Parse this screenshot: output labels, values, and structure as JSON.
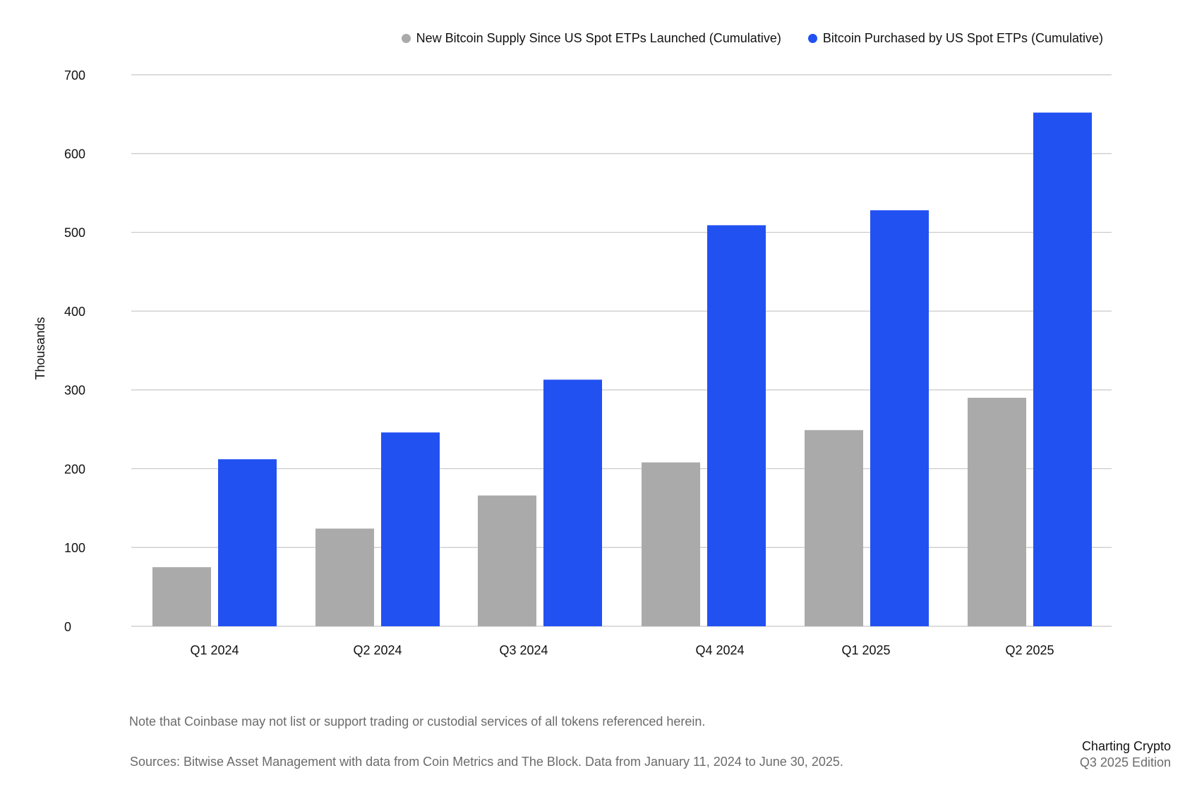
{
  "chart_data": {
    "type": "bar",
    "categories": [
      "Q1 2024",
      "Q2 2024",
      "Q3 2024",
      "Q4 2024",
      "Q1 2025",
      "Q2 2025"
    ],
    "series": [
      {
        "name": "New Bitcoin Supply Since US Spot ETPs Launched (Cumulative)",
        "color": "#aaaaaa",
        "values": [
          75,
          124,
          166,
          208,
          249,
          290
        ]
      },
      {
        "name": "Bitcoin Purchased by US Spot ETPs (Cumulative)",
        "color": "#2251f2",
        "values": [
          212,
          246,
          313,
          509,
          528,
          652
        ]
      }
    ],
    "ylabel": "Thousands",
    "yticks": [
      0,
      100,
      200,
      300,
      400,
      500,
      600,
      700
    ],
    "ylim": [
      0,
      700
    ],
    "grid": true,
    "legend_position": "top-right"
  },
  "footer": {
    "note": "Note that Coinbase may not list or support trading or custodial services of all tokens referenced herein.",
    "sources": "Sources: Bitwise Asset Management with data from Coin Metrics and The Block. Data from January 11, 2024 to June 30, 2025."
  },
  "brand": {
    "title": "Charting Crypto",
    "edition": "Q3 2025 Edition"
  },
  "colors": {
    "gridline": "#c8c8c8",
    "axis_text": "#111111",
    "muted_text": "#6b6b6b"
  }
}
